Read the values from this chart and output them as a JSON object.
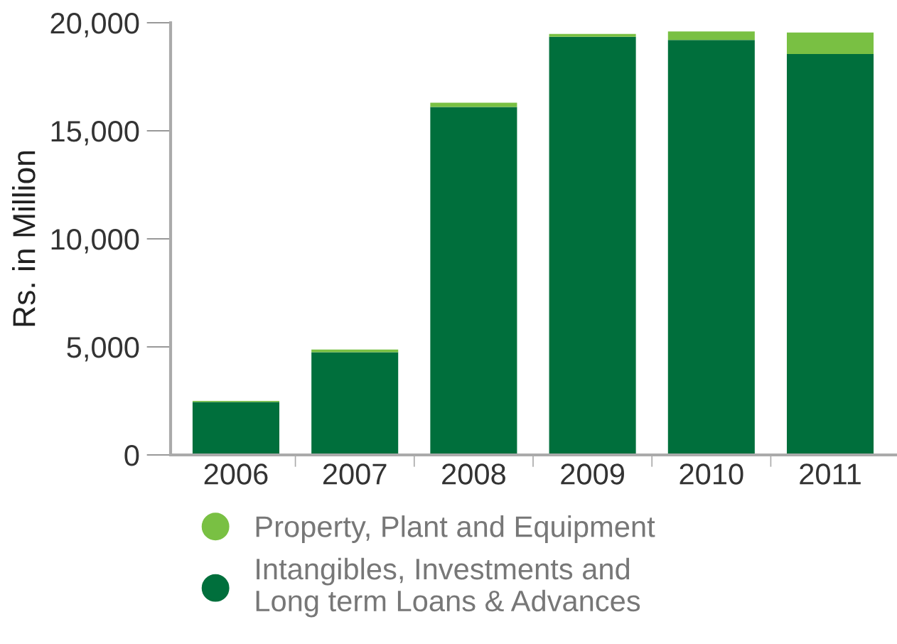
{
  "chart_data": {
    "type": "bar",
    "stacked": true,
    "ylabel": "Rs. in Million",
    "categories": [
      "2006",
      "2007",
      "2008",
      "2009",
      "2010",
      "2011"
    ],
    "series": [
      {
        "name": "Intangibles, Investments and\nLong term Loans & Advances",
        "color": "#006f3c",
        "values": [
          2450,
          4750,
          16100,
          19350,
          19200,
          18550
        ]
      },
      {
        "name": "Property, Plant and Equipment",
        "color": "#79c043",
        "values": [
          50,
          130,
          200,
          130,
          400,
          1000
        ]
      }
    ],
    "ylim": [
      0,
      20000
    ],
    "yticks": [
      {
        "value": 0,
        "label": "0"
      },
      {
        "value": 5000,
        "label": "5,000"
      },
      {
        "value": 10000,
        "label": "10,000"
      },
      {
        "value": 15000,
        "label": "15,000"
      },
      {
        "value": 20000,
        "label": "20,000"
      }
    ],
    "grid": false,
    "legend": "bottom left"
  }
}
